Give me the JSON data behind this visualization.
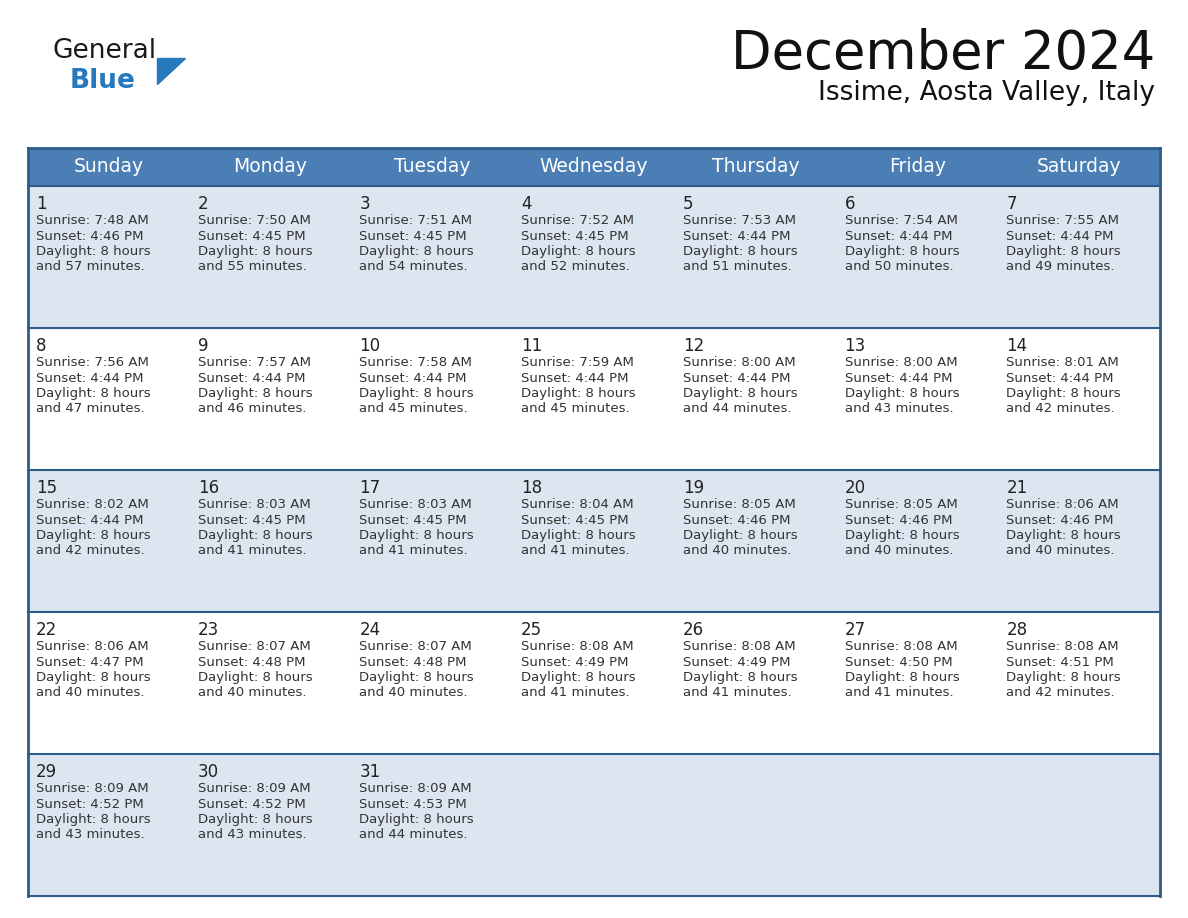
{
  "title": "December 2024",
  "subtitle": "Issime, Aosta Valley, Italy",
  "header_bg": "#4a7eb5",
  "header_text_color": "#ffffff",
  "row_bg_light": "#dce6f1",
  "row_bg_white": "#ffffff",
  "border_color": "#2e5c8a",
  "day_names": [
    "Sunday",
    "Monday",
    "Tuesday",
    "Wednesday",
    "Thursday",
    "Friday",
    "Saturday"
  ],
  "logo_general_color": "#1a1a1a",
  "logo_blue_color": "#2878be",
  "text_color": "#333333",
  "day_num_color": "#222222",
  "days": [
    {
      "day": 1,
      "col": 0,
      "row": 0,
      "sunrise": "7:48 AM",
      "sunset": "4:46 PM",
      "daylight_suffix": "and 57 minutes."
    },
    {
      "day": 2,
      "col": 1,
      "row": 0,
      "sunrise": "7:50 AM",
      "sunset": "4:45 PM",
      "daylight_suffix": "and 55 minutes."
    },
    {
      "day": 3,
      "col": 2,
      "row": 0,
      "sunrise": "7:51 AM",
      "sunset": "4:45 PM",
      "daylight_suffix": "and 54 minutes."
    },
    {
      "day": 4,
      "col": 3,
      "row": 0,
      "sunrise": "7:52 AM",
      "sunset": "4:45 PM",
      "daylight_suffix": "and 52 minutes."
    },
    {
      "day": 5,
      "col": 4,
      "row": 0,
      "sunrise": "7:53 AM",
      "sunset": "4:44 PM",
      "daylight_suffix": "and 51 minutes."
    },
    {
      "day": 6,
      "col": 5,
      "row": 0,
      "sunrise": "7:54 AM",
      "sunset": "4:44 PM",
      "daylight_suffix": "and 50 minutes."
    },
    {
      "day": 7,
      "col": 6,
      "row": 0,
      "sunrise": "7:55 AM",
      "sunset": "4:44 PM",
      "daylight_suffix": "and 49 minutes."
    },
    {
      "day": 8,
      "col": 0,
      "row": 1,
      "sunrise": "7:56 AM",
      "sunset": "4:44 PM",
      "daylight_suffix": "and 47 minutes."
    },
    {
      "day": 9,
      "col": 1,
      "row": 1,
      "sunrise": "7:57 AM",
      "sunset": "4:44 PM",
      "daylight_suffix": "and 46 minutes."
    },
    {
      "day": 10,
      "col": 2,
      "row": 1,
      "sunrise": "7:58 AM",
      "sunset": "4:44 PM",
      "daylight_suffix": "and 45 minutes."
    },
    {
      "day": 11,
      "col": 3,
      "row": 1,
      "sunrise": "7:59 AM",
      "sunset": "4:44 PM",
      "daylight_suffix": "and 45 minutes."
    },
    {
      "day": 12,
      "col": 4,
      "row": 1,
      "sunrise": "8:00 AM",
      "sunset": "4:44 PM",
      "daylight_suffix": "and 44 minutes."
    },
    {
      "day": 13,
      "col": 5,
      "row": 1,
      "sunrise": "8:00 AM",
      "sunset": "4:44 PM",
      "daylight_suffix": "and 43 minutes."
    },
    {
      "day": 14,
      "col": 6,
      "row": 1,
      "sunrise": "8:01 AM",
      "sunset": "4:44 PM",
      "daylight_suffix": "and 42 minutes."
    },
    {
      "day": 15,
      "col": 0,
      "row": 2,
      "sunrise": "8:02 AM",
      "sunset": "4:44 PM",
      "daylight_suffix": "and 42 minutes."
    },
    {
      "day": 16,
      "col": 1,
      "row": 2,
      "sunrise": "8:03 AM",
      "sunset": "4:45 PM",
      "daylight_suffix": "and 41 minutes."
    },
    {
      "day": 17,
      "col": 2,
      "row": 2,
      "sunrise": "8:03 AM",
      "sunset": "4:45 PM",
      "daylight_suffix": "and 41 minutes."
    },
    {
      "day": 18,
      "col": 3,
      "row": 2,
      "sunrise": "8:04 AM",
      "sunset": "4:45 PM",
      "daylight_suffix": "and 41 minutes."
    },
    {
      "day": 19,
      "col": 4,
      "row": 2,
      "sunrise": "8:05 AM",
      "sunset": "4:46 PM",
      "daylight_suffix": "and 40 minutes."
    },
    {
      "day": 20,
      "col": 5,
      "row": 2,
      "sunrise": "8:05 AM",
      "sunset": "4:46 PM",
      "daylight_suffix": "and 40 minutes."
    },
    {
      "day": 21,
      "col": 6,
      "row": 2,
      "sunrise": "8:06 AM",
      "sunset": "4:46 PM",
      "daylight_suffix": "and 40 minutes."
    },
    {
      "day": 22,
      "col": 0,
      "row": 3,
      "sunrise": "8:06 AM",
      "sunset": "4:47 PM",
      "daylight_suffix": "and 40 minutes."
    },
    {
      "day": 23,
      "col": 1,
      "row": 3,
      "sunrise": "8:07 AM",
      "sunset": "4:48 PM",
      "daylight_suffix": "and 40 minutes."
    },
    {
      "day": 24,
      "col": 2,
      "row": 3,
      "sunrise": "8:07 AM",
      "sunset": "4:48 PM",
      "daylight_suffix": "and 40 minutes."
    },
    {
      "day": 25,
      "col": 3,
      "row": 3,
      "sunrise": "8:08 AM",
      "sunset": "4:49 PM",
      "daylight_suffix": "and 41 minutes."
    },
    {
      "day": 26,
      "col": 4,
      "row": 3,
      "sunrise": "8:08 AM",
      "sunset": "4:49 PM",
      "daylight_suffix": "and 41 minutes."
    },
    {
      "day": 27,
      "col": 5,
      "row": 3,
      "sunrise": "8:08 AM",
      "sunset": "4:50 PM",
      "daylight_suffix": "and 41 minutes."
    },
    {
      "day": 28,
      "col": 6,
      "row": 3,
      "sunrise": "8:08 AM",
      "sunset": "4:51 PM",
      "daylight_suffix": "and 42 minutes."
    },
    {
      "day": 29,
      "col": 0,
      "row": 4,
      "sunrise": "8:09 AM",
      "sunset": "4:52 PM",
      "daylight_suffix": "and 43 minutes."
    },
    {
      "day": 30,
      "col": 1,
      "row": 4,
      "sunrise": "8:09 AM",
      "sunset": "4:52 PM",
      "daylight_suffix": "and 43 minutes."
    },
    {
      "day": 31,
      "col": 2,
      "row": 4,
      "sunrise": "8:09 AM",
      "sunset": "4:53 PM",
      "daylight_suffix": "and 44 minutes."
    }
  ]
}
